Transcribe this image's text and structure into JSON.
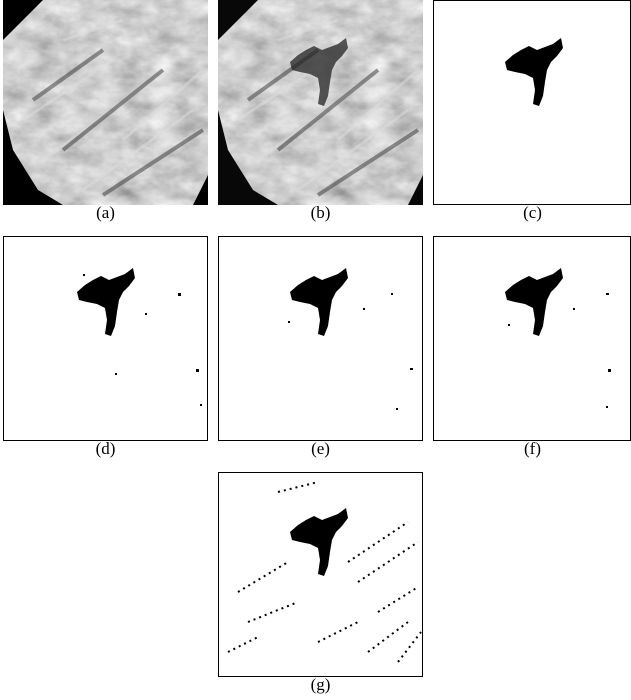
{
  "figure": {
    "captions": [
      "(a)",
      "(b)",
      "(c)",
      "(d)",
      "(e)",
      "(f)",
      "(g)"
    ]
  }
}
